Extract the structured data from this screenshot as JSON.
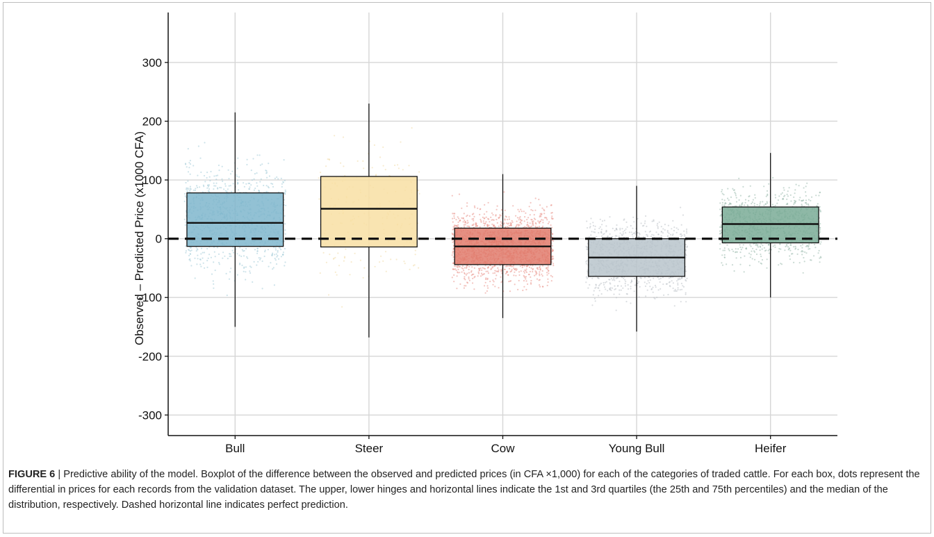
{
  "figure_label": "FIGURE 6",
  "caption_text": " | Predictive ability of the model. Boxplot of the difference between the observed and predicted prices (in CFA ×1,000) for each of the categories of traded cattle. For each box, dots represent the differential in prices for each records from the validation dataset. The upper, lower hinges and horizontal lines indicate the 1st and 3rd quartiles (the 25th and 75th percentiles) and the median of the distribution, respectively. Dashed horizontal line indicates perfect prediction.",
  "chart_data": {
    "type": "boxplot",
    "ylabel": "Observed – Predicted Price (x1000 CFA)",
    "xlabel": "",
    "ylim": [
      -335,
      385
    ],
    "yticks": [
      -300,
      -200,
      -100,
      0,
      100,
      200,
      300
    ],
    "grid": true,
    "reference_line": {
      "y": 0,
      "style": "dashed"
    },
    "categories": [
      "Bull",
      "Steer",
      "Cow",
      "Young Bull",
      "Heifer"
    ],
    "boxes": [
      {
        "category": "Bull",
        "whisker_low": -150,
        "q1": -13,
        "median": 27,
        "q3": 78,
        "whisker_high": 215,
        "color": "#7fb6cc",
        "point_color": "#9cc8d6",
        "points_density": 0.55
      },
      {
        "category": "Steer",
        "whisker_low": -168,
        "q1": -14,
        "median": 51,
        "q3": 106,
        "whisker_high": 230,
        "color": "#f8dfa3",
        "point_color": "#efd7a0",
        "points_density": 0.12
      },
      {
        "category": "Cow",
        "whisker_low": -135,
        "q1": -44,
        "median": -13,
        "q3": 18,
        "whisker_high": 110,
        "color": "#e07b6c",
        "point_color": "#e88a80",
        "points_density": 1.0
      },
      {
        "category": "Young Bull",
        "whisker_low": -158,
        "q1": -64,
        "median": -32,
        "q3": 0,
        "whisker_high": 90,
        "color": "#b9c4cb",
        "point_color": "#b7bec4",
        "points_density": 0.6
      },
      {
        "category": "Heifer",
        "whisker_low": -100,
        "q1": -7,
        "median": 25,
        "q3": 54,
        "whisker_high": 146,
        "color": "#7aab96",
        "point_color": "#93b6a7",
        "points_density": 0.55
      }
    ]
  }
}
